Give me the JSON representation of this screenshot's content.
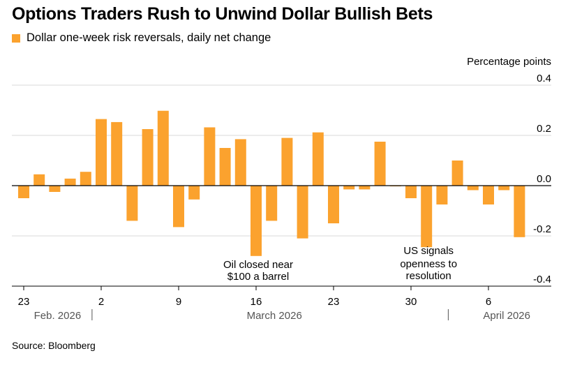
{
  "title": "Options Traders Rush to Unwind Dollar Bullish Bets",
  "legend_label": "Dollar one-week risk reversals, daily net change",
  "source": "Source: Bloomberg",
  "colors": {
    "bar": "#FBA22E",
    "grid": "#d8d8d8",
    "zero": "#000000",
    "axis": "#000000"
  },
  "chart_data": {
    "type": "bar",
    "ylabel": "Percentage points",
    "ylim": [
      -0.4,
      0.4
    ],
    "yticks": [
      0.4,
      0.2,
      0.0,
      -0.2,
      -0.4
    ],
    "ytick_labels": [
      "0.4",
      "0.2",
      "0.0",
      "-0.2",
      "-0.4"
    ],
    "x_tick_labels": [
      {
        "label": "23",
        "index": 0
      },
      {
        "label": "2",
        "index": 5
      },
      {
        "label": "9",
        "index": 10
      },
      {
        "label": "16",
        "index": 15
      },
      {
        "label": "23",
        "index": 20
      },
      {
        "label": "30",
        "index": 25
      },
      {
        "label": "6",
        "index": 30
      }
    ],
    "months": [
      {
        "label": "Feb. 2026",
        "center_index": 2.0,
        "divider_after_index": 4.5
      },
      {
        "label": "March 2026",
        "center_index": 16.0
      },
      {
        "label": "April 2026",
        "center_index": 31.0,
        "divider_before_index": 27.0
      }
    ],
    "series": [
      {
        "name": "Dollar one-week risk reversals, daily net change",
        "values": [
          -0.05,
          0.045,
          -0.025,
          0.028,
          0.055,
          0.265,
          0.253,
          -0.14,
          0.225,
          0.298,
          -0.165,
          -0.055,
          0.232,
          0.15,
          0.185,
          -0.28,
          -0.14,
          0.19,
          -0.21,
          0.212,
          -0.15,
          -0.015,
          -0.015,
          0.175,
          -0.002,
          -0.05,
          -0.245,
          -0.075,
          0.1,
          -0.018,
          -0.075,
          -0.018,
          -0.205
        ]
      }
    ],
    "annotations": [
      {
        "lines": [
          "Oil closed near",
          "$100 a barrel"
        ],
        "index": 15
      },
      {
        "lines": [
          "US signals",
          "openness to",
          "resolution"
        ],
        "index": 26
      }
    ]
  }
}
